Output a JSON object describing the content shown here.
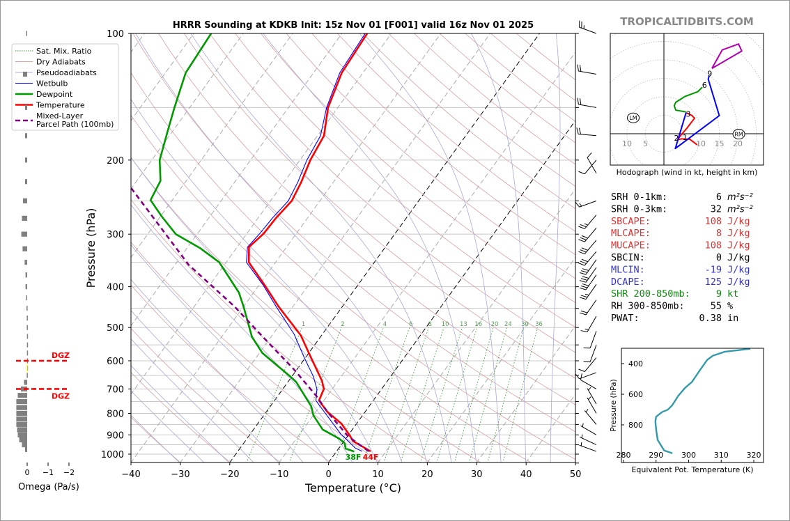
{
  "brand": "TROPICALTIDBITS.COM",
  "chart_data": [
    {
      "type": "line",
      "subtype": "skew-t",
      "title": "HRRR Sounding at KDKB Init: 15z Nov 01 [F001] valid 16z Nov 01 2025",
      "xlabel": "Temperature (°C)",
      "ylabel": "Pressure (hPa)",
      "xlim": [
        -40,
        50
      ],
      "ylim": [
        1050,
        100
      ],
      "log_y": true,
      "x_ticks": [
        -40,
        -30,
        -20,
        -10,
        0,
        10,
        20,
        30,
        40,
        50
      ],
      "x_tick_labels": [
        "−40",
        "−30",
        "−20",
        "−10",
        "0",
        "10",
        "20",
        "30",
        "40",
        "50"
      ],
      "y_ticks": [
        100,
        200,
        300,
        400,
        500,
        600,
        700,
        800,
        900,
        1000
      ],
      "grid": true,
      "legend_placement": "upper-left",
      "legend": [
        {
          "label": "Sat. Mix. Ratio",
          "color": "#3a9a3a",
          "style": "dotted"
        },
        {
          "label": "Dry Adiabats",
          "color": "#d8a0a0",
          "style": "solid"
        },
        {
          "label": "Pseudoadiabats",
          "color": "#a8a8dc",
          "style": "solid"
        },
        {
          "label": "Wetbulb",
          "color": "#0000ff",
          "style": "solid"
        },
        {
          "label": "Dewpoint",
          "color": "#009900",
          "style": "solid"
        },
        {
          "label": "Temperature",
          "color": "#ff0000",
          "style": "solid"
        },
        {
          "label": "Mixed-Layer",
          "label2": "Parcel Path (100mb)",
          "color": "#800080",
          "style": "dashed"
        }
      ],
      "mixing_ratio_labels": [
        "1",
        "2",
        "4",
        "6",
        "8",
        "10",
        "13",
        "16",
        "20",
        "24",
        "30",
        "36"
      ],
      "highlight_isotherms": [
        -20,
        0
      ],
      "series": [
        {
          "name": "Temperature",
          "color": "#ff0000",
          "p": [
            985,
            931,
            902,
            846,
            794,
            754,
            745,
            700,
            669,
            575,
            522,
            446,
            397,
            350,
            322,
            299,
            275,
            250,
            226,
            200,
            175,
            150,
            124,
            100
          ],
          "T": [
            6.9,
            1.8,
            0.3,
            -3.1,
            -7.6,
            -10.4,
            -11.0,
            -11.7,
            -13.3,
            -20.0,
            -24.2,
            -32.9,
            -38.8,
            -45.4,
            -47.6,
            -46.6,
            -46.4,
            -45.7,
            -46.5,
            -47.9,
            -48.7,
            -52.0,
            -54.3,
            -54.9
          ]
        },
        {
          "name": "Wetbulb",
          "color": "#0000ff",
          "p": [
            985,
            967,
            897,
            770,
            746,
            700,
            653,
            589,
            519,
            446,
            397,
            350,
            322,
            299,
            275,
            250,
            226,
            200,
            175,
            150,
            124,
            100
          ],
          "T": [
            5.2,
            3.3,
            -1.6,
            -9.9,
            -11.6,
            -13.1,
            -15.7,
            -20.3,
            -25.7,
            -33.4,
            -39.1,
            -45.9,
            -47.9,
            -47.4,
            -47.1,
            -46.4,
            -47.2,
            -48.6,
            -49.4,
            -52.3,
            -54.7,
            -55.3
          ]
        },
        {
          "name": "Dewpoint",
          "color": "#009900",
          "p": [
            986,
            970,
            943,
            919,
            874,
            810,
            770,
            674,
            653,
            575,
            526,
            446,
            413,
            350,
            324,
            300,
            272,
            249,
            224,
            200,
            172,
            150,
            124,
            100
          ],
          "T": [
            3.6,
            1.4,
            0.5,
            -1.3,
            -6.0,
            -9.9,
            -11.7,
            -18.3,
            -20.4,
            -29.4,
            -33.9,
            -40.0,
            -43.0,
            -51.4,
            -57.3,
            -64.3,
            -69.8,
            -74.4,
            -75.2,
            -78.4,
            -80.9,
            -83.1,
            -85.9,
            -86.5
          ]
        },
        {
          "name": "Mixed-Layer Parcel Path (100mb)",
          "color": "#800080",
          "p": [
            985,
            908,
            794,
            726,
            630,
            532,
            446,
            355,
            233
          ],
          "T": [
            6.5,
            0.2,
            -7.6,
            -12.3,
            -20.5,
            -31.0,
            -41.8,
            -57.2,
            -80.1
          ]
        }
      ],
      "surface_labels": {
        "dewpoint": "38F",
        "temperature": "44F"
      },
      "wind_barbs": [
        {
          "p": 100,
          "dir": 290,
          "spd": 25
        },
        {
          "p": 125,
          "dir": 280,
          "spd": 20
        },
        {
          "p": 150,
          "dir": 280,
          "spd": 20
        },
        {
          "p": 175,
          "dir": 275,
          "spd": 20
        },
        {
          "p": 200,
          "dir": 220,
          "spd": 10
        },
        {
          "p": 215,
          "dir": 330,
          "spd": 10
        },
        {
          "p": 250,
          "dir": 250,
          "spd": 15
        },
        {
          "p": 270,
          "dir": 220,
          "spd": 25
        },
        {
          "p": 290,
          "dir": 220,
          "spd": 30
        },
        {
          "p": 310,
          "dir": 220,
          "spd": 30
        },
        {
          "p": 330,
          "dir": 220,
          "spd": 30
        },
        {
          "p": 345,
          "dir": 215,
          "spd": 30
        },
        {
          "p": 360,
          "dir": 215,
          "spd": 30
        },
        {
          "p": 375,
          "dir": 215,
          "spd": 30
        },
        {
          "p": 395,
          "dir": 215,
          "spd": 25
        },
        {
          "p": 430,
          "dir": 215,
          "spd": 20
        },
        {
          "p": 470,
          "dir": 210,
          "spd": 15
        },
        {
          "p": 510,
          "dir": 200,
          "spd": 10
        },
        {
          "p": 550,
          "dir": 200,
          "spd": 10
        },
        {
          "p": 590,
          "dir": 220,
          "spd": 10
        },
        {
          "p": 640,
          "dir": 250,
          "spd": 10
        },
        {
          "p": 700,
          "dir": 300,
          "spd": 10
        },
        {
          "p": 760,
          "dir": 330,
          "spd": 5
        },
        {
          "p": 800,
          "dir": 330,
          "spd": 5
        },
        {
          "p": 850,
          "dir": 320,
          "spd": 5
        },
        {
          "p": 900,
          "dir": 300,
          "spd": 5
        },
        {
          "p": 950,
          "dir": 295,
          "spd": 5
        },
        {
          "p": 985,
          "dir": 290,
          "spd": 5
        }
      ]
    },
    {
      "type": "bar",
      "subtype": "omega-profile",
      "xlabel": "Omega (Pa/s)",
      "x_ticks": [
        0,
        -1,
        -2
      ],
      "x_tick_labels": [
        "0",
        "−1",
        "−2"
      ],
      "p": [
        100,
        125,
        150,
        175,
        200,
        225,
        250,
        275,
        300,
        325,
        350,
        375,
        400,
        425,
        450,
        475,
        500,
        525,
        550,
        575,
        600,
        625,
        650,
        675,
        700,
        725,
        750,
        775,
        800,
        825,
        850,
        875,
        900,
        925,
        950,
        975
      ],
      "omega": [
        0.05,
        0.2,
        0.1,
        0.1,
        0.1,
        0.1,
        0.2,
        0.25,
        0.28,
        0.22,
        0.12,
        0.08,
        0.08,
        0.05,
        0.03,
        0.02,
        0.02,
        0.01,
        0.01,
        0.01,
        0.01,
        0.01,
        0.02,
        0.15,
        0.3,
        0.45,
        0.52,
        0.52,
        0.52,
        0.52,
        0.52,
        0.48,
        0.45,
        0.38,
        0.25,
        0.1
      ],
      "dgz": {
        "label": "DGZ",
        "top_p": 600,
        "bottom_p": 700,
        "color": "#ff0000"
      }
    },
    {
      "type": "line",
      "subtype": "hodograph",
      "xlabel": "Hodograph (wind in kt, height in km)",
      "ring_labels": [
        {
          "u": -10,
          "text": "10"
        },
        {
          "u": -5,
          "text": "5"
        },
        {
          "u": 10,
          "text": "10"
        },
        {
          "u": 15,
          "text": "15"
        },
        {
          "u": 20,
          "text": "20"
        }
      ],
      "segments": [
        {
          "color": "#ff0000",
          "u": [
            9,
            8.5,
            7,
            4.8,
            3.7,
            4.5,
            6.2,
            8.3,
            7.5,
            6
          ],
          "v": [
            -3,
            -2.6,
            -1.5,
            -1.4,
            -1.6,
            -0.5,
            1.5,
            4.2,
            5,
            5.7
          ]
        },
        {
          "color": "#009900",
          "u": [
            6,
            3.2,
            2.8,
            3.2,
            5.7,
            9.2,
            10.4
          ],
          "v": [
            5.9,
            6.4,
            7.6,
            8.5,
            10.1,
            11.4,
            12.6
          ]
        },
        {
          "color": "#0000ff",
          "u": [
            6,
            3.1,
            15,
            12,
            12.3
          ],
          "v": [
            5.7,
            -4,
            4.9,
            14.8,
            15.8
          ]
        },
        {
          "color": "#b000b0",
          "u": [
            13,
            15.8,
            20.2,
            21.1,
            13
          ],
          "v": [
            17.7,
            22.7,
            24.3,
            22.4,
            17.7
          ]
        }
      ],
      "height_labels": [
        {
          "text": "1",
          "u": 5.7,
          "v": -0.9
        },
        {
          "text": "2",
          "u": 3.4,
          "v": -1.1
        },
        {
          "text": "3",
          "u": 6.6,
          "v": 5.4
        },
        {
          "text": "6",
          "u": 11.0,
          "v": 13.2
        },
        {
          "text": "9",
          "u": 12.4,
          "v": 16.3
        }
      ],
      "storm_motion": [
        {
          "text": "LM",
          "u": -8.3,
          "v": 4.3
        },
        {
          "text": "RM",
          "u": 20.3,
          "v": -0.1
        }
      ]
    },
    {
      "type": "line",
      "subtype": "theta-e-profile",
      "xlabel": "Equivalent Pot. Temperature (K)",
      "ylabel": "Pressure (hPa)",
      "xlim": [
        279.5,
        322.5
      ],
      "ylim": [
        1045,
        300
      ],
      "x_ticks": [
        280,
        290,
        300,
        310,
        320
      ],
      "y_ticks": [
        400,
        600,
        800
      ],
      "color": "#3399aa",
      "theta_e": [
        318.9,
        311,
        307.4,
        305.7,
        303.2,
        301,
        298.9,
        296.8,
        295,
        293.6,
        291.8,
        290,
        289.8,
        290,
        290.5,
        292.5,
        295
      ],
      "p": [
        303,
        323,
        349,
        376,
        451,
        520,
        558,
        611,
        671,
        701,
        717,
        747,
        777,
        830,
        899,
        967,
        985
      ]
    }
  ],
  "stats": [
    {
      "label": "SRH 0-1km:",
      "value": "6",
      "unit": "m²s⁻²",
      "color": "#000000"
    },
    {
      "label": "SRH 0-3km:",
      "value": "32",
      "unit": "m²s⁻²",
      "color": "#000000"
    },
    {
      "label": "SBCAPE:",
      "value": "108",
      "unit": "J/kg",
      "color": "#dd3333"
    },
    {
      "label": "MLCAPE:",
      "value": "8",
      "unit": "J/kg",
      "color": "#dd3333"
    },
    {
      "label": "MUCAPE:",
      "value": "108",
      "unit": "J/kg",
      "color": "#dd3333"
    },
    {
      "label": "SBCIN:",
      "value": "0",
      "unit": "J/kg",
      "color": "#000000"
    },
    {
      "label": "MLCIN:",
      "value": "-19",
      "unit": "J/kg",
      "color": "#3333cc"
    },
    {
      "label": "DCAPE:",
      "value": "125",
      "unit": "J/kg",
      "color": "#3333cc"
    },
    {
      "label": "SHR 200-850mb:",
      "value": "9",
      "unit": "kt",
      "color": "#118811"
    },
    {
      "label": "RH 300-850mb:",
      "value": "55",
      "unit": "%",
      "color": "#000000"
    },
    {
      "label": "PWAT:",
      "value": "0.38",
      "unit": "in",
      "color": "#000000"
    }
  ]
}
